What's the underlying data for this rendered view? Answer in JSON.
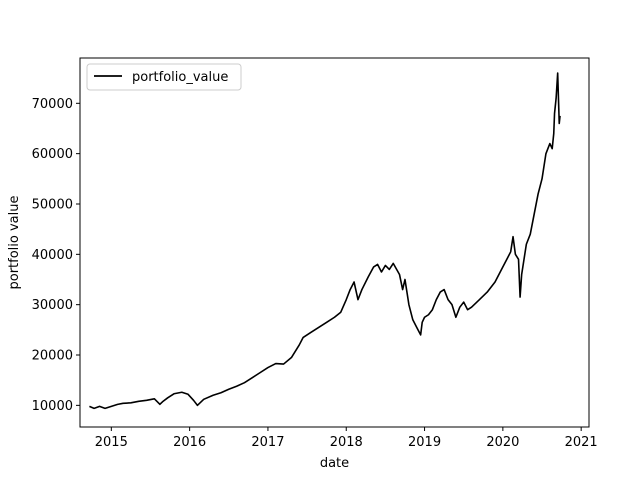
{
  "chart_data": {
    "type": "line",
    "title": "",
    "xlabel": "date",
    "ylabel": "portfolio value",
    "xlim": [
      2014.6,
      2021.1
    ],
    "ylim": [
      5700,
      79000
    ],
    "grid": false,
    "legend": {
      "placement": "top-left",
      "entries": [
        "portfolio_value"
      ]
    },
    "x_ticks": [
      {
        "value": 2015,
        "label": "2015"
      },
      {
        "value": 2016,
        "label": "2016"
      },
      {
        "value": 2017,
        "label": "2017"
      },
      {
        "value": 2018,
        "label": "2018"
      },
      {
        "value": 2019,
        "label": "2019"
      },
      {
        "value": 2020,
        "label": "2020"
      },
      {
        "value": 2021,
        "label": "2021"
      }
    ],
    "y_ticks": [
      {
        "value": 10000,
        "label": "10000"
      },
      {
        "value": 20000,
        "label": "20000"
      },
      {
        "value": 30000,
        "label": "30000"
      },
      {
        "value": 40000,
        "label": "40000"
      },
      {
        "value": 50000,
        "label": "50000"
      },
      {
        "value": 60000,
        "label": "60000"
      },
      {
        "value": 70000,
        "label": "70000"
      }
    ],
    "series": [
      {
        "name": "portfolio_value",
        "color": "#000000",
        "x": [
          2014.72,
          2014.78,
          2014.85,
          2014.92,
          2015.0,
          2015.08,
          2015.15,
          2015.25,
          2015.35,
          2015.45,
          2015.55,
          2015.62,
          2015.66,
          2015.72,
          2015.8,
          2015.9,
          2015.98,
          2016.05,
          2016.1,
          2016.18,
          2016.3,
          2016.4,
          2016.5,
          2016.6,
          2016.7,
          2016.8,
          2016.9,
          2017.0,
          2017.1,
          2017.2,
          2017.3,
          2017.4,
          2017.45,
          2017.55,
          2017.65,
          2017.75,
          2017.85,
          2017.93,
          2018.0,
          2018.05,
          2018.1,
          2018.15,
          2018.2,
          2018.28,
          2018.35,
          2018.4,
          2018.45,
          2018.5,
          2018.55,
          2018.6,
          2018.68,
          2018.72,
          2018.75,
          2018.8,
          2018.85,
          2018.9,
          2018.95,
          2018.97,
          2019.0,
          2019.05,
          2019.1,
          2019.15,
          2019.2,
          2019.25,
          2019.3,
          2019.35,
          2019.4,
          2019.45,
          2019.5,
          2019.55,
          2019.6,
          2019.7,
          2019.8,
          2019.9,
          2020.0,
          2020.05,
          2020.1,
          2020.13,
          2020.16,
          2020.2,
          2020.22,
          2020.24,
          2020.27,
          2020.3,
          2020.35,
          2020.4,
          2020.45,
          2020.5,
          2020.55,
          2020.6,
          2020.63,
          2020.65,
          2020.66,
          2020.68,
          2020.7,
          2020.72,
          2020.73
        ],
        "y": [
          9800,
          9400,
          9800,
          9400,
          9800,
          10200,
          10400,
          10500,
          10800,
          11000,
          11300,
          10200,
          10800,
          11500,
          12300,
          12600,
          12200,
          11000,
          10000,
          11200,
          12000,
          12500,
          13200,
          13800,
          14500,
          15500,
          16500,
          17500,
          18300,
          18200,
          19500,
          22000,
          23500,
          24500,
          25500,
          26500,
          27500,
          28500,
          31000,
          33000,
          34500,
          31000,
          33000,
          35500,
          37500,
          38000,
          36500,
          37800,
          37000,
          38200,
          36000,
          33000,
          35000,
          30000,
          27000,
          25500,
          24000,
          26500,
          27500,
          28000,
          29000,
          31000,
          32500,
          33000,
          31000,
          30000,
          27500,
          29500,
          30500,
          29000,
          29500,
          31000,
          32500,
          34500,
          37500,
          39000,
          40500,
          43500,
          40000,
          39000,
          31500,
          36000,
          39000,
          42000,
          44000,
          48000,
          52000,
          55000,
          60000,
          62000,
          61000,
          64000,
          68000,
          71000,
          76000,
          66000,
          67500
        ]
      }
    ]
  }
}
